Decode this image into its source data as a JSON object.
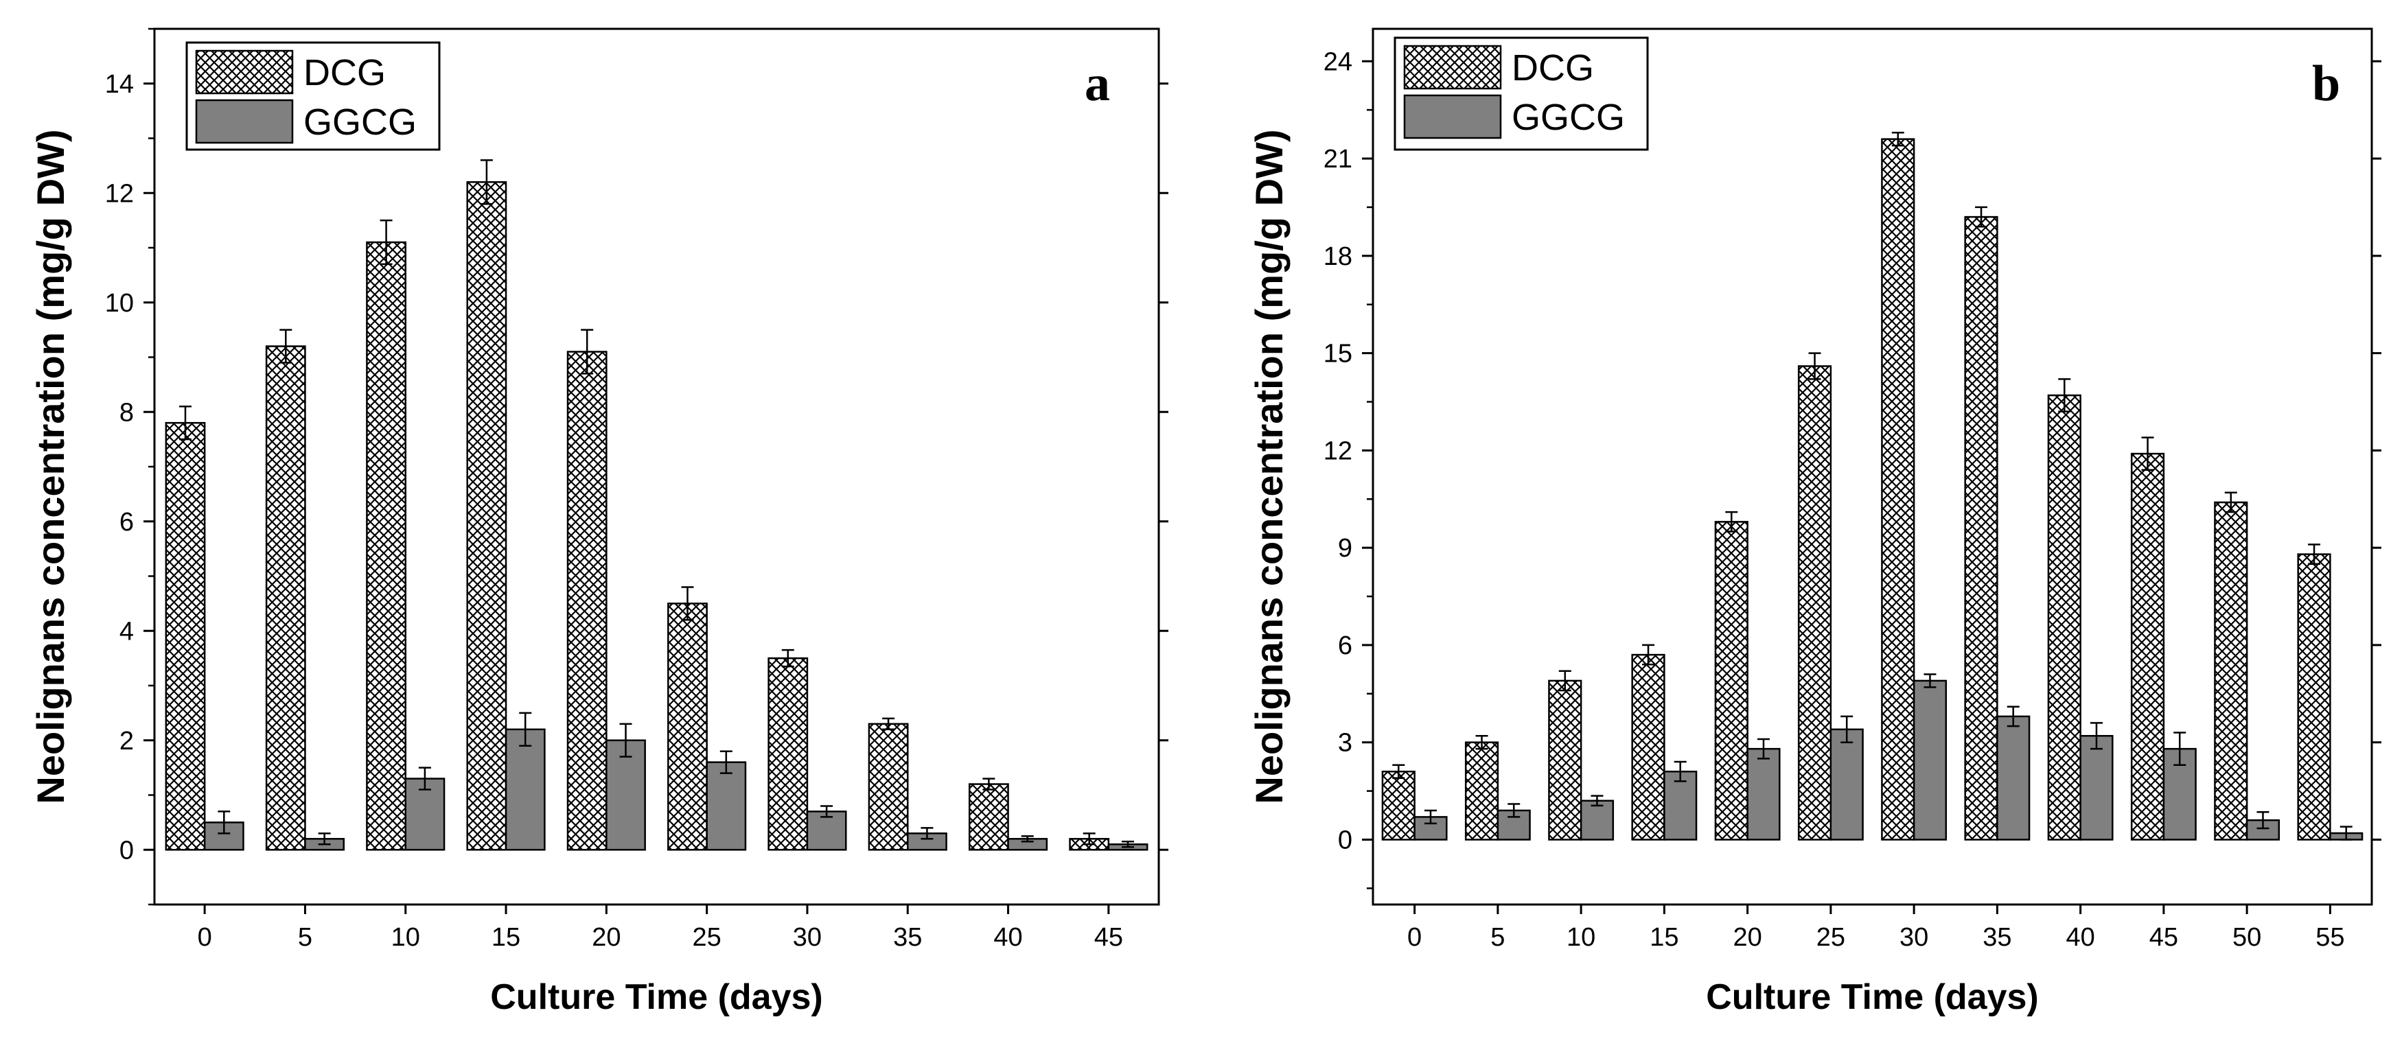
{
  "colors": {
    "dcg_pattern_line": "#000000",
    "dcg_fill": "#ffffff",
    "ggcg_fill": "#808080",
    "axis": "#000000",
    "text": "#000000"
  },
  "chart_data": [
    {
      "type": "bar",
      "panel_label": "a",
      "title": "",
      "xlabel": "Culture Time (days)",
      "ylabel": "Neolignans concentration (mg/g DW)",
      "categories": [
        "0",
        "5",
        "10",
        "15",
        "20",
        "25",
        "30",
        "35",
        "40",
        "45"
      ],
      "ylim": [
        -1,
        15
      ],
      "yticks": [
        0,
        2,
        4,
        6,
        8,
        10,
        12,
        14
      ],
      "legend_position": "top-left",
      "series": [
        {
          "name": "DCG",
          "pattern": "crosshatch",
          "values": [
            7.8,
            9.2,
            11.1,
            12.2,
            9.1,
            4.5,
            3.5,
            2.3,
            1.2,
            0.2
          ],
          "errors": [
            0.3,
            0.3,
            0.4,
            0.4,
            0.4,
            0.3,
            0.15,
            0.1,
            0.1,
            0.1
          ]
        },
        {
          "name": "GGCG",
          "pattern": "solid",
          "values": [
            0.5,
            0.2,
            1.3,
            2.2,
            2.0,
            1.6,
            0.7,
            0.3,
            0.2,
            0.1
          ],
          "errors": [
            0.2,
            0.1,
            0.2,
            0.3,
            0.3,
            0.2,
            0.1,
            0.1,
            0.05,
            0.05
          ]
        }
      ]
    },
    {
      "type": "bar",
      "panel_label": "b",
      "title": "",
      "xlabel": "Culture Time (days)",
      "ylabel": "Neolignans concentration (mg/g DW)",
      "categories": [
        "0",
        "5",
        "10",
        "15",
        "20",
        "25",
        "30",
        "35",
        "40",
        "45",
        "50",
        "55"
      ],
      "ylim": [
        -2,
        25
      ],
      "yticks": [
        0,
        3,
        6,
        9,
        12,
        15,
        18,
        21,
        24
      ],
      "legend_position": "top-left",
      "series": [
        {
          "name": "DCG",
          "pattern": "crosshatch",
          "values": [
            2.1,
            3.0,
            4.9,
            5.7,
            9.8,
            14.6,
            21.6,
            19.2,
            13.7,
            11.9,
            10.4,
            8.8
          ],
          "errors": [
            0.2,
            0.2,
            0.3,
            0.3,
            0.3,
            0.4,
            0.2,
            0.3,
            0.5,
            0.5,
            0.3,
            0.3
          ]
        },
        {
          "name": "GGCG",
          "pattern": "solid",
          "values": [
            0.7,
            0.9,
            1.2,
            2.1,
            2.8,
            3.4,
            4.9,
            3.8,
            3.2,
            2.8,
            0.6,
            0.2
          ],
          "errors": [
            0.2,
            0.2,
            0.15,
            0.3,
            0.3,
            0.4,
            0.2,
            0.3,
            0.4,
            0.5,
            0.25,
            0.2
          ]
        }
      ]
    }
  ]
}
